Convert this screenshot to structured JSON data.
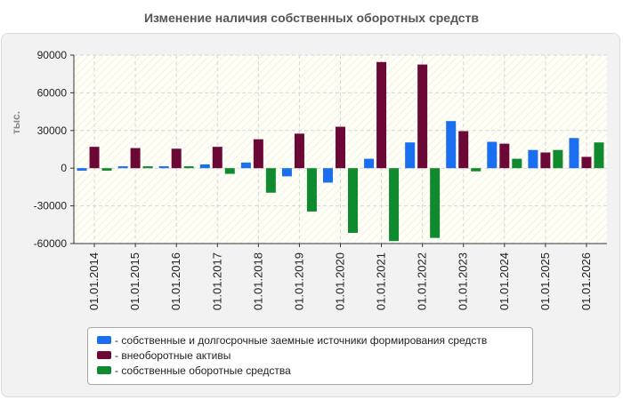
{
  "chart_data": {
    "type": "bar",
    "title": "Изменение наличия собственных оборотных средств",
    "ylabel": "тыс.",
    "xlabel": "",
    "ylim": [
      -60000,
      90000
    ],
    "yticks": [
      90000,
      60000,
      30000,
      0,
      -30000,
      -60000
    ],
    "grid": true,
    "legend_position": "bottom",
    "categories": [
      "01.01.2014",
      "01.01.2015",
      "01.01.2016",
      "01.01.2017",
      "01.01.2018",
      "01.01.2019",
      "01.01.2020",
      "01.01.2021",
      "01.01.2022",
      "01.01.2023",
      "01.01.2024",
      "01.01.2025",
      "01.01.2026"
    ],
    "series": [
      {
        "name": "собственные и долгосрочные заемные источники формирования средств",
        "color": "#1a6ff0",
        "values": [
          -2000,
          1500,
          1500,
          3000,
          4500,
          -6500,
          -11500,
          7500,
          20500,
          37500,
          21000,
          14500,
          24000
        ]
      },
      {
        "name": "внеоборотные активы",
        "color": "#6b0836",
        "values": [
          17000,
          16000,
          15500,
          17000,
          23000,
          27500,
          33000,
          84500,
          82500,
          29500,
          19500,
          12500,
          9000
        ]
      },
      {
        "name": "собственные оборотные средства",
        "color": "#0f8a2e",
        "values": [
          -2000,
          1500,
          1500,
          -4500,
          -19500,
          -34500,
          -51500,
          -58000,
          -55500,
          -2500,
          7500,
          14500,
          20500
        ]
      }
    ]
  }
}
